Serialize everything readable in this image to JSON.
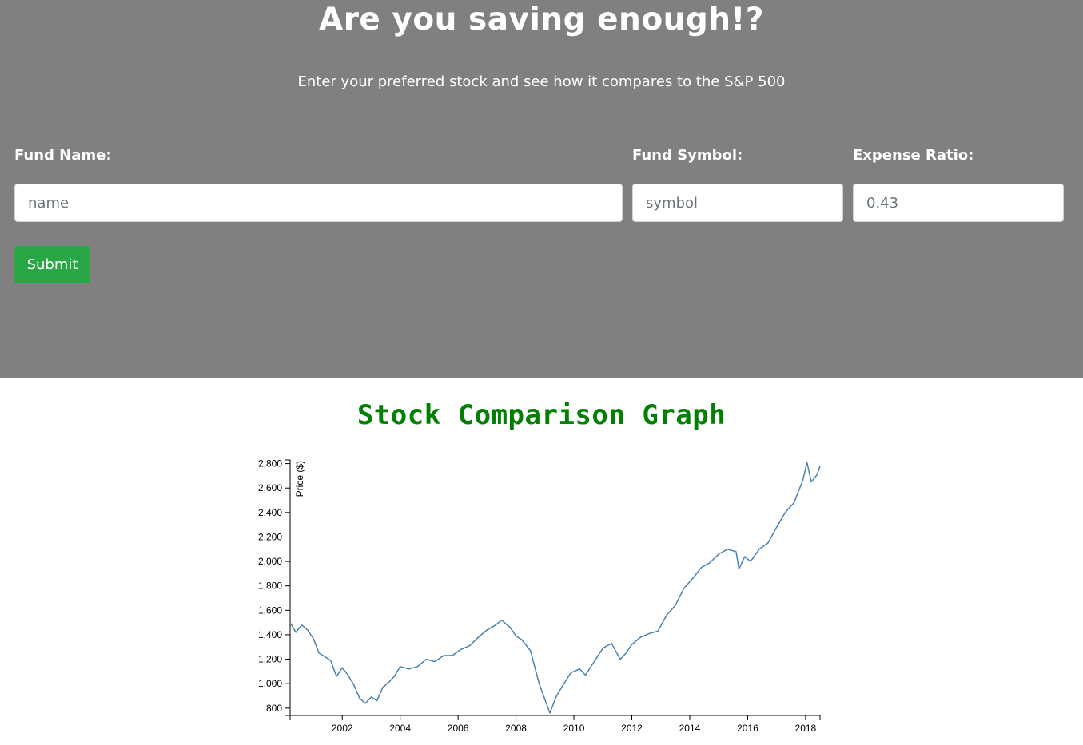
{
  "hero": {
    "title": "Are you saving enough!?",
    "subtitle": "Enter your preferred stock and see how it compares to the S&P 500"
  },
  "form": {
    "fund_name": {
      "label": "Fund Name:",
      "placeholder": "name",
      "value": ""
    },
    "fund_symbol": {
      "label": "Fund Symbol:",
      "placeholder": "symbol",
      "value": ""
    },
    "expense_ratio": {
      "label": "Expense Ratio:",
      "placeholder": "0.43",
      "value": ""
    },
    "submit_label": "Submit"
  },
  "colors": {
    "hero_background": "#808080",
    "submit_button": "#28a745",
    "chart_title": "#008000",
    "series_line": "#4682b4"
  },
  "chart_data": {
    "type": "line",
    "title": "Stock Comparison Graph",
    "xlabel": "",
    "ylabel": "Price ($)",
    "xlim": [
      2000.2,
      2018.5
    ],
    "ylim": [
      740,
      2830
    ],
    "x_ticks": [
      "2002",
      "2004",
      "2006",
      "2008",
      "2010",
      "2012",
      "2014",
      "2016",
      "2018"
    ],
    "y_ticks": [
      "800",
      "1,000",
      "1,200",
      "1,400",
      "1,600",
      "1,800",
      "2,000",
      "2,200",
      "2,400",
      "2,600",
      "2,800"
    ],
    "grid": false,
    "series": [
      {
        "x": [
          2000.2,
          2000.4,
          2000.6,
          2000.8,
          2001.0,
          2001.2,
          2001.4,
          2001.6,
          2001.8,
          2002.0,
          2002.2,
          2002.4,
          2002.6,
          2002.8,
          2003.0,
          2003.2,
          2003.4,
          2003.6,
          2003.8,
          2004.0,
          2004.3,
          2004.6,
          2004.9,
          2005.2,
          2005.5,
          2005.8,
          2006.1,
          2006.4,
          2006.7,
          2007.0,
          2007.3,
          2007.5,
          2007.8,
          2008.0,
          2008.2,
          2008.5,
          2008.8,
          2009.0,
          2009.17,
          2009.4,
          2009.6,
          2009.9,
          2010.2,
          2010.4,
          2010.7,
          2011.0,
          2011.3,
          2011.6,
          2011.8,
          2012.0,
          2012.3,
          2012.6,
          2012.9,
          2013.2,
          2013.5,
          2013.8,
          2014.1,
          2014.4,
          2014.7,
          2015.0,
          2015.3,
          2015.6,
          2015.7,
          2015.9,
          2016.1,
          2016.4,
          2016.7,
          2017.0,
          2017.3,
          2017.6,
          2017.9,
          2018.05,
          2018.2,
          2018.4,
          2018.5
        ],
        "values": [
          1500,
          1420,
          1480,
          1440,
          1370,
          1250,
          1220,
          1190,
          1060,
          1130,
          1070,
          990,
          880,
          840,
          890,
          860,
          970,
          1010,
          1060,
          1140,
          1120,
          1140,
          1200,
          1180,
          1230,
          1230,
          1280,
          1310,
          1380,
          1440,
          1480,
          1520,
          1460,
          1390,
          1360,
          1270,
          1000,
          870,
          760,
          900,
          980,
          1090,
          1120,
          1070,
          1180,
          1290,
          1330,
          1200,
          1250,
          1320,
          1380,
          1410,
          1430,
          1560,
          1640,
          1780,
          1860,
          1950,
          1990,
          2060,
          2100,
          2080,
          1940,
          2040,
          2000,
          2100,
          2150,
          2280,
          2400,
          2480,
          2660,
          2810,
          2650,
          2710,
          2780
        ]
      }
    ]
  }
}
